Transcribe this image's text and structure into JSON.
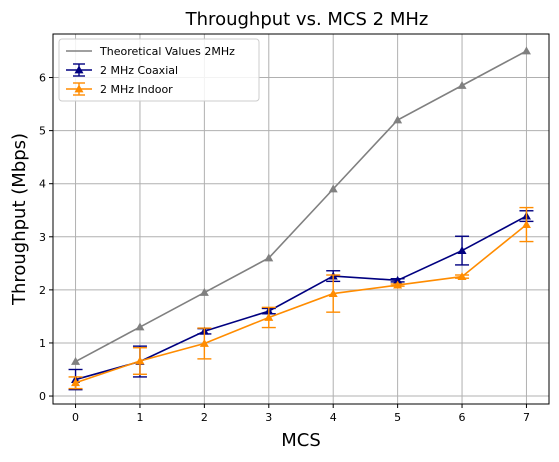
{
  "chart_data": {
    "type": "line",
    "title": "Throughput vs. MCS 2 MHz",
    "xlabel": "MCS",
    "ylabel": "Throughput (Mbps)",
    "x": [
      0,
      1,
      2,
      3,
      4,
      5,
      6,
      7
    ],
    "xlim": [
      -0.35,
      7.35
    ],
    "ylim": [
      -0.15,
      6.82
    ],
    "xticks": [
      "0",
      "1",
      "2",
      "3",
      "4",
      "5",
      "6",
      "7"
    ],
    "yticks": [
      0,
      1,
      2,
      3,
      4,
      5,
      6
    ],
    "grid": true,
    "legend_position": "upper-left",
    "series": [
      {
        "name": "Theoretical Values 2MHz",
        "color": "#808080",
        "marker": "triangle",
        "values": [
          0.65,
          1.3,
          1.95,
          2.6,
          3.9,
          5.2,
          5.85,
          6.5
        ],
        "errors": null
      },
      {
        "name": "2 MHz Coaxial",
        "color": "#000080",
        "marker": "triangle",
        "values": [
          0.31,
          0.65,
          1.22,
          1.6,
          2.26,
          2.18,
          2.74,
          3.39
        ],
        "errors": [
          0.19,
          0.29,
          0.05,
          0.05,
          0.1,
          0.03,
          0.27,
          0.1
        ]
      },
      {
        "name": "2 MHz Indoor",
        "color": "#ff8c00",
        "marker": "triangle",
        "values": [
          0.25,
          0.66,
          0.99,
          1.48,
          1.93,
          2.09,
          2.25,
          3.23
        ],
        "errors": [
          0.11,
          0.25,
          0.29,
          0.19,
          0.35,
          0.02,
          0.03,
          0.32
        ]
      }
    ]
  }
}
